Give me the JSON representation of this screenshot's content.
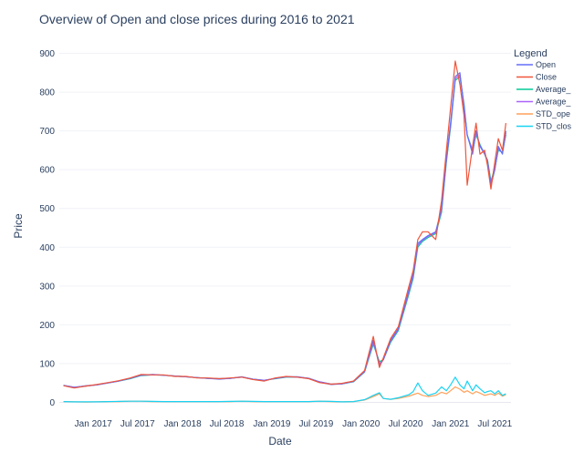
{
  "chart_data": {
    "type": "line",
    "title": "Overview of Open and close prices during 2016 to 2021",
    "xlabel": "Date",
    "ylabel": "Price",
    "ylim": [
      -20,
      920
    ],
    "yticks": [
      0,
      100,
      200,
      300,
      400,
      500,
      600,
      700,
      800,
      900
    ],
    "xticks": [
      {
        "date": "2017-01-01",
        "label": "Jan 2017"
      },
      {
        "date": "2017-07-01",
        "label": "Jul 2017"
      },
      {
        "date": "2018-01-01",
        "label": "Jan 2018"
      },
      {
        "date": "2018-07-01",
        "label": "Jul 2018"
      },
      {
        "date": "2019-01-01",
        "label": "Jan 2019"
      },
      {
        "date": "2019-07-01",
        "label": "Jul 2019"
      },
      {
        "date": "2020-01-01",
        "label": "Jan 2020"
      },
      {
        "date": "2020-07-01",
        "label": "Jul 2020"
      },
      {
        "date": "2021-01-01",
        "label": "Jan 2021"
      },
      {
        "date": "2021-07-01",
        "label": "Jul 2021"
      }
    ],
    "xlim": [
      "2016-08-15",
      "2021-09-05"
    ],
    "legend": {
      "title": "Legend",
      "position": "top-right"
    },
    "dates": [
      "2016-09-01",
      "2016-10-15",
      "2016-12-01",
      "2017-01-15",
      "2017-03-01",
      "2017-04-15",
      "2017-06-01",
      "2017-07-15",
      "2017-09-01",
      "2017-10-15",
      "2017-12-01",
      "2018-01-15",
      "2018-03-01",
      "2018-04-15",
      "2018-06-01",
      "2018-07-15",
      "2018-09-01",
      "2018-10-15",
      "2018-12-01",
      "2019-01-15",
      "2019-03-01",
      "2019-04-15",
      "2019-06-01",
      "2019-07-15",
      "2019-09-01",
      "2019-10-15",
      "2019-12-01",
      "2020-01-15",
      "2020-02-01",
      "2020-02-20",
      "2020-03-16",
      "2020-04-01",
      "2020-05-01",
      "2020-06-01",
      "2020-07-15",
      "2020-08-01",
      "2020-08-20",
      "2020-09-08",
      "2020-10-01",
      "2020-11-01",
      "2020-11-25",
      "2020-12-15",
      "2021-01-01",
      "2021-01-20",
      "2021-02-08",
      "2021-02-25",
      "2021-03-10",
      "2021-04-01",
      "2021-04-15",
      "2021-05-01",
      "2021-05-20",
      "2021-06-01",
      "2021-06-15",
      "2021-07-01",
      "2021-07-15",
      "2021-08-01",
      "2021-08-15"
    ],
    "series": [
      {
        "name": "Open",
        "color": "#636efa",
        "values": [
          44,
          38,
          43,
          45,
          50,
          55,
          62,
          70,
          72,
          70,
          68,
          66,
          64,
          62,
          60,
          62,
          66,
          60,
          56,
          62,
          66,
          66,
          62,
          52,
          46,
          48,
          54,
          80,
          120,
          160,
          95,
          110,
          160,
          190,
          290,
          330,
          410,
          420,
          430,
          440,
          500,
          630,
          720,
          840,
          850,
          760,
          690,
          640,
          700,
          660,
          640,
          620,
          560,
          600,
          660,
          640,
          700
        ]
      },
      {
        "name": "Close",
        "color": "#ef553b",
        "values": [
          43,
          37,
          42,
          46,
          51,
          56,
          63,
          72,
          71,
          71,
          67,
          67,
          63,
          63,
          61,
          63,
          65,
          59,
          55,
          63,
          67,
          65,
          61,
          51,
          47,
          49,
          55,
          82,
          124,
          170,
          90,
          115,
          165,
          195,
          300,
          340,
          420,
          440,
          440,
          420,
          520,
          650,
          760,
          880,
          820,
          740,
          560,
          660,
          720,
          640,
          650,
          610,
          550,
          620,
          680,
          650,
          720
        ]
      },
      {
        "name": "Average_",
        "color": "#00cc96",
        "values": [
          44,
          39,
          42,
          45,
          50,
          55,
          61,
          69,
          71,
          70,
          68,
          66,
          64,
          62,
          61,
          62,
          65,
          60,
          57,
          61,
          65,
          65,
          62,
          53,
          47,
          48,
          53,
          78,
          112,
          150,
          105,
          110,
          155,
          185,
          280,
          320,
          400,
          415,
          425,
          435,
          490,
          620,
          710,
          830,
          840,
          770,
          690,
          650,
          690,
          665,
          640,
          625,
          570,
          605,
          650,
          645,
          690
        ]
      },
      {
        "name": "Average_",
        "color": "#ab63fa",
        "values": [
          44,
          39,
          42,
          45,
          50,
          55,
          62,
          70,
          71,
          70,
          68,
          66,
          64,
          62,
          61,
          62,
          65,
          60,
          57,
          62,
          66,
          65,
          62,
          53,
          47,
          48,
          54,
          79,
          115,
          155,
          100,
          110,
          158,
          188,
          285,
          325,
          405,
          418,
          428,
          438,
          495,
          625,
          715,
          835,
          845,
          765,
          688,
          648,
          695,
          662,
          642,
          622,
          565,
          602,
          655,
          642,
          695
        ]
      },
      {
        "name": "STD_ope",
        "color": "#ffa15a",
        "values": [
          2,
          1.5,
          1,
          1.5,
          2,
          2,
          3,
          3,
          2,
          2,
          2,
          2,
          2,
          2,
          2,
          2,
          3,
          2,
          2,
          2,
          2,
          2,
          2,
          3,
          2,
          1.5,
          2,
          6,
          10,
          15,
          22,
          10,
          8,
          10,
          16,
          20,
          24,
          18,
          15,
          18,
          26,
          22,
          30,
          40,
          34,
          26,
          30,
          22,
          28,
          24,
          18,
          20,
          22,
          18,
          24,
          16,
          20
        ]
      },
      {
        "name": "STD_clos",
        "color": "#19d3f3",
        "values": [
          2,
          1.5,
          1.5,
          1.5,
          2,
          2.5,
          3,
          3,
          2.5,
          2,
          2,
          2,
          2,
          2,
          2,
          2.5,
          3,
          2.5,
          2,
          2,
          2,
          2,
          2,
          3,
          2.5,
          1.5,
          2,
          7,
          12,
          18,
          25,
          10,
          8,
          12,
          20,
          28,
          50,
          30,
          18,
          24,
          40,
          30,
          45,
          65,
          45,
          35,
          55,
          30,
          45,
          35,
          25,
          28,
          30,
          22,
          30,
          18,
          22
        ]
      }
    ]
  }
}
